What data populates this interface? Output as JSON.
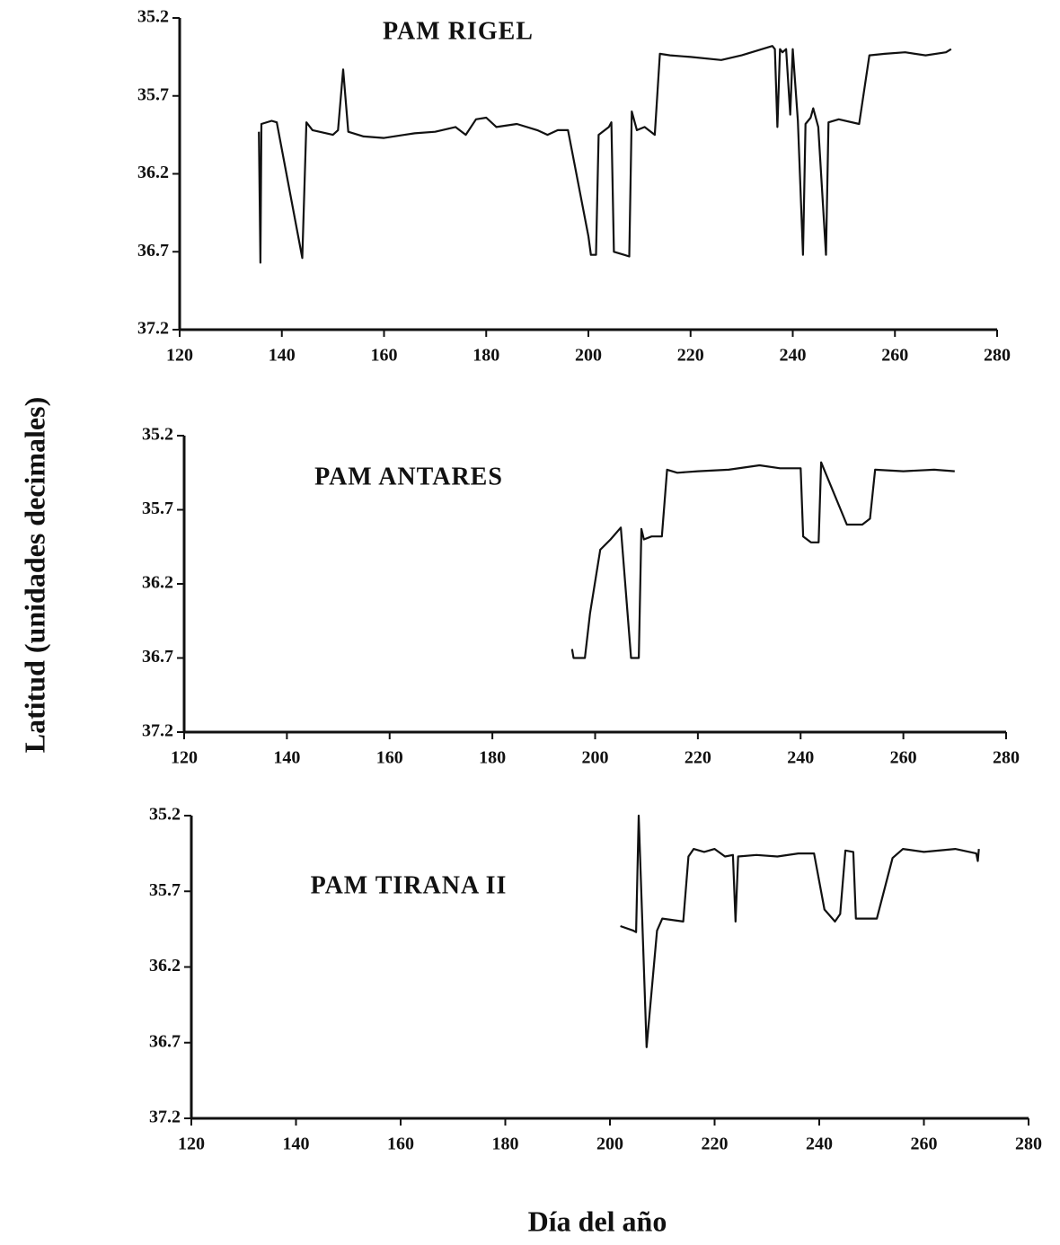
{
  "axis_labels": {
    "y": "Latitud (unidades decimales)",
    "x": "Día del año"
  },
  "chart_data": [
    {
      "type": "line",
      "title": "PAM RIGEL",
      "color": "#111111",
      "xlim": [
        120,
        280
      ],
      "xticks": [
        120,
        140,
        160,
        180,
        200,
        220,
        240,
        260,
        280
      ],
      "ylim": [
        37.2,
        35.2
      ],
      "yticks": [
        35.2,
        35.7,
        36.2,
        36.7,
        37.2
      ],
      "x": [
        135.5,
        135.8,
        136,
        138,
        139,
        144,
        144.8,
        146,
        150,
        151,
        152,
        153,
        156,
        160,
        164,
        166,
        170,
        174,
        176,
        178,
        180,
        182,
        186,
        190,
        192,
        194,
        196,
        200,
        200.5,
        201.5,
        202,
        204,
        204.5,
        205,
        207,
        208,
        208.5,
        209.5,
        211,
        213,
        214,
        216,
        220,
        226,
        230,
        236,
        236.5,
        237,
        237.5,
        238,
        238.7,
        239.5,
        240,
        241,
        242,
        242.5,
        243.5,
        244,
        245,
        246.5,
        247,
        249,
        253,
        255,
        258,
        262,
        266,
        270,
        271
      ],
      "values": [
        35.93,
        36.77,
        35.88,
        35.86,
        35.87,
        36.74,
        35.87,
        35.92,
        35.95,
        35.92,
        35.53,
        35.93,
        35.96,
        35.97,
        35.95,
        35.94,
        35.93,
        35.9,
        35.95,
        35.85,
        35.84,
        35.9,
        35.88,
        35.92,
        35.95,
        35.92,
        35.92,
        36.6,
        36.72,
        36.72,
        35.95,
        35.9,
        35.87,
        36.7,
        36.72,
        36.73,
        35.8,
        35.92,
        35.9,
        35.95,
        35.43,
        35.44,
        35.45,
        35.47,
        35.44,
        35.38,
        35.4,
        35.9,
        35.4,
        35.42,
        35.4,
        35.82,
        35.4,
        35.86,
        36.72,
        35.88,
        35.84,
        35.78,
        35.9,
        36.72,
        35.87,
        35.85,
        35.88,
        35.44,
        35.43,
        35.42,
        35.44,
        35.42,
        35.4
      ]
    },
    {
      "type": "line",
      "title": "PAM ANTARES",
      "color": "#111111",
      "xlim": [
        120,
        280
      ],
      "xticks": [
        120,
        140,
        160,
        180,
        200,
        220,
        240,
        260,
        280
      ],
      "ylim": [
        37.2,
        35.2
      ],
      "yticks": [
        35.2,
        35.7,
        36.2,
        36.7,
        37.2
      ],
      "x": [
        195.5,
        195.8,
        198,
        199,
        201,
        203,
        205,
        207,
        208.5,
        209,
        209.5,
        211,
        213,
        214,
        216,
        220,
        226,
        232,
        236,
        240,
        240.5,
        242,
        243.5,
        244,
        249,
        252,
        253.5,
        254.5,
        260,
        266,
        270
      ],
      "values": [
        36.64,
        36.7,
        36.7,
        36.4,
        35.97,
        35.9,
        35.82,
        36.7,
        36.7,
        35.83,
        35.9,
        35.88,
        35.88,
        35.43,
        35.45,
        35.44,
        35.43,
        35.4,
        35.42,
        35.42,
        35.88,
        35.92,
        35.92,
        35.38,
        35.8,
        35.8,
        35.76,
        35.43,
        35.44,
        35.43,
        35.44
      ]
    },
    {
      "type": "line",
      "title": "PAM TIRANA II",
      "color": "#111111",
      "xlim": [
        120,
        280
      ],
      "xticks": [
        120,
        140,
        160,
        180,
        200,
        220,
        240,
        260,
        280
      ],
      "ylim": [
        37.2,
        35.2
      ],
      "yticks": [
        35.2,
        35.7,
        36.2,
        36.7,
        37.2
      ],
      "x": [
        202,
        204.5,
        205,
        205.5,
        207,
        209,
        210,
        214,
        215,
        216,
        218,
        220,
        222,
        223.5,
        224,
        224.5,
        228,
        232,
        236,
        239,
        241,
        243,
        244,
        245,
        246.5,
        247,
        251,
        254,
        256,
        260,
        266,
        270,
        270.3,
        270.5
      ],
      "values": [
        35.93,
        35.96,
        35.97,
        35.2,
        36.73,
        35.96,
        35.88,
        35.9,
        35.47,
        35.42,
        35.44,
        35.42,
        35.47,
        35.46,
        35.9,
        35.47,
        35.46,
        35.47,
        35.45,
        35.45,
        35.82,
        35.9,
        35.85,
        35.43,
        35.44,
        35.88,
        35.88,
        35.48,
        35.42,
        35.44,
        35.42,
        35.45,
        35.5,
        35.42
      ]
    }
  ]
}
